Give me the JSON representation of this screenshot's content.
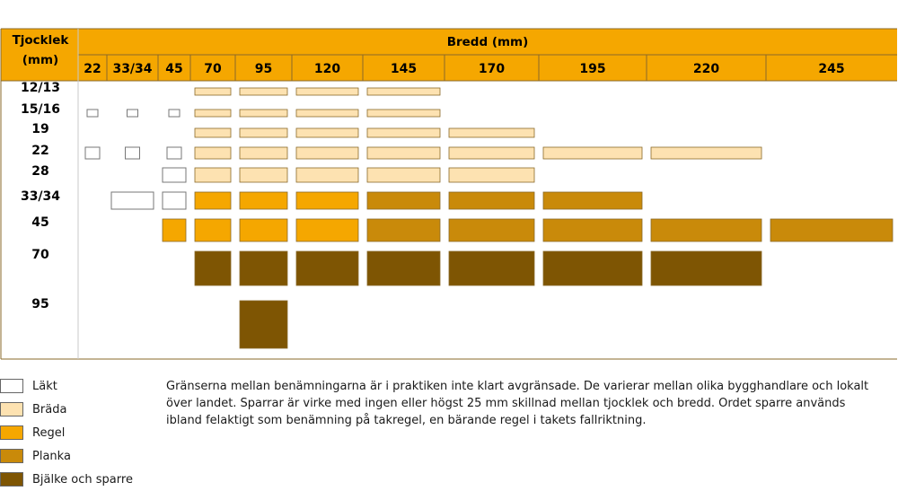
{
  "chart_data": {
    "type": "table",
    "corner_header": [
      "Tjocklek",
      "(mm)"
    ],
    "column_group_header": "Bredd (mm)",
    "widths": [
      "22",
      "33/34",
      "45",
      "70",
      "95",
      "120",
      "145",
      "170",
      "195",
      "220",
      "245"
    ],
    "thicknesses": [
      "12/13",
      "15/16",
      "19",
      "22",
      "28",
      "33/34",
      "45",
      "70",
      "95"
    ],
    "categories": [
      {
        "key": "lakt",
        "name": "Läkt",
        "color": "#ffffff"
      },
      {
        "key": "brada",
        "name": "Bräda",
        "color": "#fde2b1"
      },
      {
        "key": "regel",
        "name": "Regel",
        "color": "#f5a700"
      },
      {
        "key": "planka",
        "name": "Planka",
        "color": "#c98a0a"
      },
      {
        "key": "bjalke",
        "name": "Bjälke och sparre",
        "color": "#7e5503"
      }
    ],
    "cells": {
      "12/13": [
        null,
        null,
        null,
        "brada",
        "brada",
        "brada",
        "brada",
        null,
        null,
        null,
        null
      ],
      "15/16": [
        "lakt",
        "lakt",
        "lakt",
        "brada",
        "brada",
        "brada",
        "brada",
        null,
        null,
        null,
        null
      ],
      "19": [
        null,
        null,
        null,
        "brada",
        "brada",
        "brada",
        "brada",
        "brada",
        null,
        null,
        null
      ],
      "22": [
        "lakt",
        "lakt",
        "lakt",
        "brada",
        "brada",
        "brada",
        "brada",
        "brada",
        "brada",
        "brada",
        null
      ],
      "28": [
        null,
        null,
        "lakt",
        "brada",
        "brada",
        "brada",
        "brada",
        "brada",
        null,
        null,
        null
      ],
      "33/34": [
        null,
        "lakt",
        "lakt",
        "regel",
        "regel",
        "regel",
        "planka",
        "planka",
        "planka",
        null,
        null
      ],
      "45": [
        null,
        null,
        "regel",
        "regel",
        "regel",
        "regel",
        "planka",
        "planka",
        "planka",
        "planka",
        "planka"
      ],
      "70": [
        null,
        null,
        null,
        "bjalke",
        "bjalke",
        "bjalke",
        "bjalke",
        "bjalke",
        "bjalke",
        "bjalke",
        null
      ],
      "95": [
        null,
        null,
        null,
        null,
        "bjalke",
        null,
        null,
        null,
        null,
        null,
        null
      ]
    }
  },
  "colors": {
    "header_bg": "#f5a700",
    "grid": "#8a6a2a"
  },
  "note": "Gränserna mellan benämningarna är i praktiken inte klart avgränsade. De varierar mellan olika bygghandlare och lokalt över landet. Sparrar är virke med ingen eller högst 25 mm skillnad mellan tjocklek och bredd. Ordet sparre används ibland felaktigt som benämning på takregel, en bärande regel i takets fallriktning."
}
